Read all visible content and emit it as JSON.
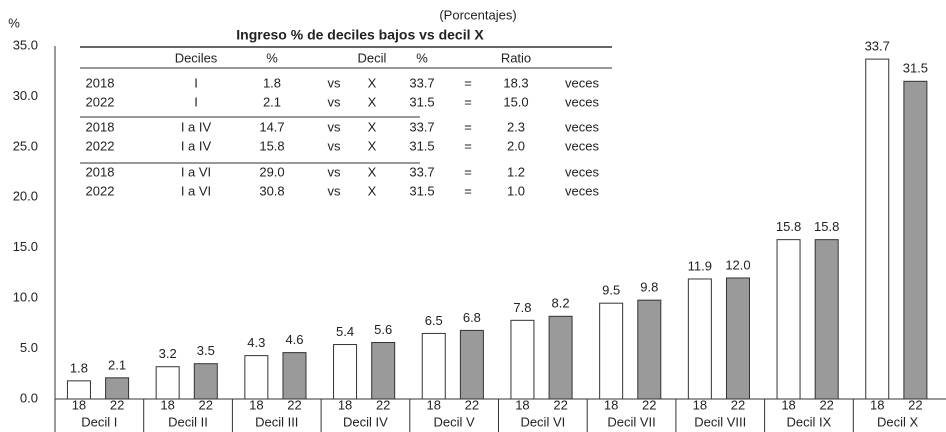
{
  "chart_data": {
    "type": "bar",
    "title": "Ingreso % de deciles bajos vs decil X",
    "subtitle": "(Porcentajes)",
    "y_label": "%",
    "categories": [
      "Decil I",
      "Decil II",
      "Decil III",
      "Decil IV",
      "Decil V",
      "Decil VI",
      "Decil VII",
      "Decil VIII",
      "Decil IX",
      "Decil X"
    ],
    "series": [
      {
        "name": "18",
        "color": "#ffffff",
        "values": [
          1.8,
          3.2,
          4.3,
          5.4,
          6.5,
          7.8,
          9.5,
          11.9,
          15.8,
          33.7
        ],
        "value_labels": [
          "1.8",
          "3.2",
          "4.3",
          "5.4",
          "6.5",
          "7.8",
          "9.5",
          "11.9",
          "15.8",
          "33.7"
        ]
      },
      {
        "name": "22",
        "color": "#9a9a9a",
        "values": [
          2.1,
          3.5,
          4.6,
          5.6,
          6.8,
          8.2,
          9.8,
          12.0,
          15.8,
          31.5
        ],
        "value_labels": [
          "2.1",
          "3.5",
          "4.6",
          "5.6",
          "6.8",
          "8.2",
          "9.8",
          "12.0",
          "15.8",
          "31.5"
        ]
      }
    ],
    "ylim": [
      0,
      35
    ],
    "yticks": [
      {
        "value": 0,
        "label": "0.0"
      },
      {
        "value": 5,
        "label": "5.0"
      },
      {
        "value": 10,
        "label": "10.0"
      },
      {
        "value": 15,
        "label": "15.0"
      },
      {
        "value": 20,
        "label": "20.0"
      },
      {
        "value": 25,
        "label": "25.0"
      },
      {
        "value": 30,
        "label": "30.0"
      },
      {
        "value": 35,
        "label": "35.0"
      }
    ],
    "grid": false,
    "table": {
      "header": [
        "Deciles",
        "%",
        "Decil",
        "%",
        "Ratio"
      ],
      "rows": [
        [
          "2018",
          "I",
          "1.8",
          "vs",
          "X",
          "33.7",
          "=",
          "18.3",
          "veces"
        ],
        [
          "2022",
          "I",
          "2.1",
          "vs",
          "X",
          "31.5",
          "=",
          "15.0",
          "veces"
        ],
        [
          "2018",
          "I a IV",
          "14.7",
          "vs",
          "X",
          "33.7",
          "=",
          "2.3",
          "veces"
        ],
        [
          "2022",
          "I a IV",
          "15.8",
          "vs",
          "X",
          "31.5",
          "=",
          "2.0",
          "veces"
        ],
        [
          "2018",
          "I a VI",
          "29.0",
          "vs",
          "X",
          "33.7",
          "=",
          "1.2",
          "veces"
        ],
        [
          "2022",
          "I a VI",
          "30.8",
          "vs",
          "X",
          "31.5",
          "=",
          "1.0",
          "veces"
        ]
      ]
    }
  }
}
